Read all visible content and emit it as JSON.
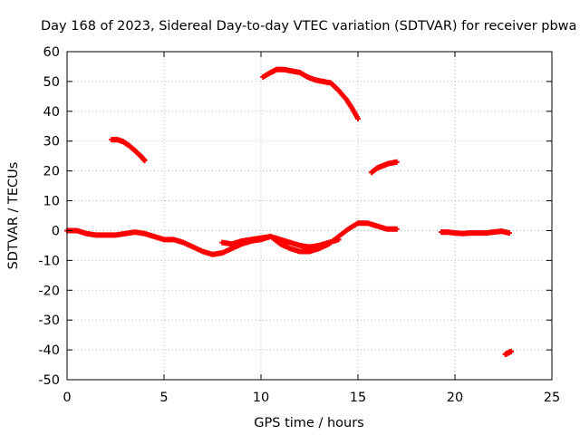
{
  "chart_data": {
    "type": "scatter",
    "title": "Day 168 of 2023, Sidereal Day-to-day VTEC variation (SDTVAR) for receiver pbwa",
    "xlabel": "GPS time / hours",
    "ylabel": "SDTVAR / TECUs",
    "xlim": [
      0,
      25
    ],
    "ylim": [
      -50,
      60
    ],
    "xticks": [
      0,
      5,
      10,
      15,
      20,
      25
    ],
    "yticks": [
      -50,
      -40,
      -30,
      -20,
      -10,
      0,
      10,
      20,
      30,
      40,
      50,
      60
    ],
    "grid": true,
    "legend": "none",
    "marker": "plus",
    "series": [
      {
        "name": "SDTVAR",
        "color": "#ff0000",
        "segments": [
          {
            "x": [
              0.0,
              0.5,
              1.0,
              1.5,
              2.0,
              2.5,
              3.0,
              3.5,
              4.0,
              4.5,
              5.0,
              5.5,
              6.0,
              6.5,
              7.0,
              7.5,
              8.0,
              8.5,
              9.0,
              9.5,
              10.0,
              10.5,
              11.0,
              11.5,
              12.0,
              12.5,
              13.0,
              13.5,
              14.0,
              14.5,
              15.0,
              15.5,
              16.0,
              16.5,
              17.0
            ],
            "y": [
              0.0,
              0.0,
              -1.0,
              -1.5,
              -1.5,
              -1.5,
              -1.0,
              -0.5,
              -1.0,
              -2.0,
              -3.0,
              -3.0,
              -4.0,
              -5.5,
              -7.0,
              -8.0,
              -7.5,
              -6.0,
              -4.5,
              -3.5,
              -3.0,
              -2.0,
              -4.5,
              -6.0,
              -7.0,
              -7.0,
              -6.0,
              -4.5,
              -2.0,
              0.5,
              2.5,
              2.5,
              1.5,
              0.5,
              0.5
            ]
          },
          {
            "x": [
              8.0,
              8.5,
              9.0,
              9.5,
              10.0,
              10.5,
              11.0,
              11.5,
              12.0,
              12.5,
              13.0,
              13.5,
              14.0
            ],
            "y": [
              -4.0,
              -4.5,
              -3.5,
              -3.0,
              -2.5,
              -2.0,
              -3.0,
              -4.0,
              -5.0,
              -5.5,
              -5.0,
              -4.0,
              -3.0
            ]
          },
          {
            "x": [
              2.3,
              2.6,
              2.9,
              3.2,
              3.5,
              3.8,
              4.0
            ],
            "y": [
              30.5,
              30.5,
              29.8,
              28.5,
              26.8,
              25.0,
              23.5
            ]
          },
          {
            "x": [
              10.1,
              10.5,
              10.8,
              11.2,
              11.6,
              12.0,
              12.4,
              12.8,
              13.2,
              13.6,
              14.0,
              14.4,
              14.7,
              15.0
            ],
            "y": [
              51.5,
              53.0,
              54.0,
              54.0,
              53.5,
              53.0,
              51.5,
              50.5,
              50.0,
              49.5,
              47.0,
              44.0,
              41.0,
              37.5
            ]
          },
          {
            "x": [
              15.7,
              16.0,
              16.3,
              16.6,
              17.0
            ],
            "y": [
              19.5,
              21.0,
              21.8,
              22.5,
              23.0
            ]
          },
          {
            "x": [
              19.3,
              19.6,
              20.0,
              20.4,
              20.8,
              21.2,
              21.6,
              22.0,
              22.4,
              22.8
            ],
            "y": [
              -0.5,
              -0.5,
              -0.8,
              -1.0,
              -0.8,
              -0.8,
              -0.8,
              -0.5,
              -0.2,
              -0.8
            ]
          },
          {
            "x": [
              22.6,
              22.75,
              22.9
            ],
            "y": [
              -41.5,
              -41.0,
              -40.5
            ]
          }
        ]
      }
    ]
  }
}
